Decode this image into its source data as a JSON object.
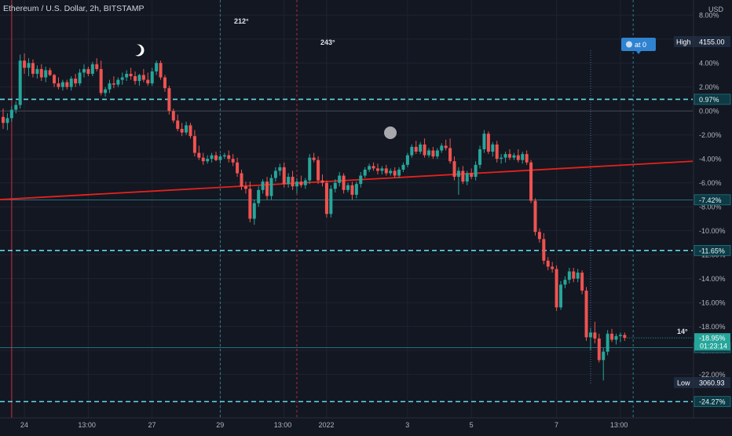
{
  "header": {
    "title": "Ethereum / U.S. Dollar, 2h, BITSTAMP"
  },
  "currency": "USD",
  "scale_mode": "percent",
  "colors": {
    "background": "#131722",
    "up": "#26a69a",
    "down": "#ef5350",
    "trendline": "#e5221b",
    "dashed_line": "#5ed9e6",
    "cycle_line_blue": "#2a7f91",
    "cycle_line_red": "#b02a3c",
    "axis_text": "#b2b5be",
    "label_bg": "#1e4e5c",
    "alert_bg": "#2f83d0"
  },
  "icons": {
    "moon": "moon-icon",
    "circle": "circle-marker-icon"
  },
  "annotations": {
    "cycle_212": "212°",
    "cycle_243": "243°",
    "cycle_14": "14°",
    "alert_label": "at 0",
    "high_label": "High",
    "high_value": "4155.00",
    "low_label": "Low",
    "low_value": "3060.93",
    "last_pct": "-18.95%",
    "countdown": "01:23:14"
  },
  "chart_data": {
    "type": "candlestick",
    "y_unit": "percent",
    "ylim": [
      -25.5,
      9.0
    ],
    "y_ticks": [
      "8.00%",
      "6.00%",
      "4.00%",
      "2.00%",
      "0.00%",
      "-2.00%",
      "-4.00%",
      "-6.00%",
      "-8.00%",
      "-10.00%",
      "-12.00%",
      "-14.00%",
      "-16.00%",
      "-18.00%",
      "-20.00%",
      "-22.00%"
    ],
    "y_tick_values": [
      8,
      6,
      4,
      2,
      0,
      -2,
      -4,
      -6,
      -8,
      -10,
      -12,
      -14,
      -16,
      -18,
      -20,
      -22
    ],
    "x_ticks": [
      "24",
      "13:00",
      "27",
      "29",
      "13:00",
      "2022",
      "3",
      "5",
      "7",
      "13:00"
    ],
    "x_tick_bar_index": [
      5,
      20,
      35,
      51,
      66,
      76,
      95,
      110,
      130,
      145
    ],
    "levels": [
      {
        "label": "0.97%",
        "value": 0.97,
        "style": "dashed"
      },
      {
        "label": "-7.42%",
        "value": -7.42,
        "style": "solid"
      },
      {
        "label": "-11.65%",
        "value": -11.65,
        "style": "dashed"
      },
      {
        "label": "-19.76%",
        "value": -19.76,
        "style": "solid"
      },
      {
        "label": "-24.27%",
        "value": -24.27,
        "style": "dashed"
      }
    ],
    "zero_line": 0.0,
    "trendline": {
      "from": [
        0,
        -7.4
      ],
      "to": [
        150,
        -4.2
      ]
    },
    "cycle_lines": [
      {
        "bar": 2,
        "color": "red"
      },
      {
        "bar": 51,
        "color": "blue"
      },
      {
        "bar": 69,
        "color": "red"
      },
      {
        "bar": 148,
        "color": "blue"
      }
    ],
    "vline_alert_bar": 138,
    "candles": [
      [
        -0.5,
        0.2,
        -1.5,
        -1.0
      ],
      [
        -1.0,
        -0.2,
        -1.6,
        -0.6
      ],
      [
        -0.6,
        0.4,
        -0.9,
        0.1
      ],
      [
        0.1,
        0.8,
        -0.2,
        0.5
      ],
      [
        0.5,
        4.7,
        0.2,
        4.2
      ],
      [
        4.2,
        4.8,
        3.1,
        3.6
      ],
      [
        3.6,
        4.4,
        2.9,
        4.0
      ],
      [
        4.0,
        4.3,
        2.8,
        3.1
      ],
      [
        3.1,
        3.8,
        2.7,
        3.5
      ],
      [
        3.5,
        3.9,
        2.5,
        2.8
      ],
      [
        2.8,
        3.7,
        2.4,
        3.4
      ],
      [
        3.4,
        3.6,
        2.9,
        3.0
      ],
      [
        3.0,
        3.1,
        2.0,
        2.3
      ],
      [
        2.3,
        2.8,
        1.8,
        2.0
      ],
      [
        2.0,
        2.6,
        1.7,
        2.4
      ],
      [
        2.4,
        2.6,
        1.8,
        2.0
      ],
      [
        2.0,
        2.9,
        1.7,
        2.7
      ],
      [
        2.7,
        3.1,
        2.0,
        2.3
      ],
      [
        2.3,
        3.5,
        2.1,
        3.2
      ],
      [
        3.2,
        3.9,
        2.8,
        3.5
      ],
      [
        3.5,
        3.7,
        2.9,
        3.1
      ],
      [
        3.1,
        4.1,
        2.9,
        3.9
      ],
      [
        3.9,
        4.4,
        3.3,
        3.5
      ],
      [
        3.5,
        4.2,
        1.3,
        1.5
      ],
      [
        1.5,
        2.0,
        1.2,
        1.8
      ],
      [
        1.8,
        2.6,
        1.5,
        2.3
      ],
      [
        2.3,
        2.9,
        1.9,
        2.2
      ],
      [
        2.2,
        2.8,
        2.0,
        2.6
      ],
      [
        2.6,
        3.2,
        2.2,
        2.8
      ],
      [
        2.8,
        3.4,
        2.5,
        3.1
      ],
      [
        3.1,
        3.6,
        2.6,
        2.9
      ],
      [
        2.9,
        3.3,
        2.2,
        2.5
      ],
      [
        2.5,
        3.1,
        2.1,
        3.0
      ],
      [
        3.0,
        3.5,
        2.4,
        2.6
      ],
      [
        2.6,
        3.2,
        2.1,
        2.3
      ],
      [
        2.3,
        3.6,
        2.1,
        3.3
      ],
      [
        3.3,
        4.2,
        3.0,
        4.0
      ],
      [
        4.0,
        4.2,
        2.6,
        2.8
      ],
      [
        2.8,
        3.0,
        1.6,
        1.9
      ],
      [
        1.9,
        2.1,
        -0.3,
        0.0
      ],
      [
        0.0,
        0.2,
        -1.0,
        -0.8
      ],
      [
        -0.8,
        -0.3,
        -1.7,
        -1.5
      ],
      [
        -1.5,
        -1.0,
        -2.1,
        -1.8
      ],
      [
        -1.8,
        -0.9,
        -2.0,
        -1.2
      ],
      [
        -1.2,
        -1.0,
        -2.3,
        -2.1
      ],
      [
        -2.1,
        -1.6,
        -3.8,
        -3.5
      ],
      [
        -3.5,
        -2.9,
        -4.1,
        -3.9
      ],
      [
        -3.9,
        -3.5,
        -4.5,
        -4.2
      ],
      [
        -4.2,
        -3.7,
        -4.4,
        -4.0
      ],
      [
        -4.0,
        -3.5,
        -4.3,
        -3.7
      ],
      [
        -3.7,
        -3.4,
        -4.2,
        -4.1
      ],
      [
        -4.1,
        -3.6,
        -4.4,
        -3.8
      ],
      [
        -3.8,
        -3.5,
        -4.0,
        -3.7
      ],
      [
        -3.7,
        -3.3,
        -4.3,
        -4.0
      ],
      [
        -4.0,
        -3.6,
        -4.6,
        -4.3
      ],
      [
        -4.3,
        -3.9,
        -5.5,
        -5.2
      ],
      [
        -5.2,
        -4.9,
        -6.6,
        -6.3
      ],
      [
        -6.3,
        -5.9,
        -6.9,
        -6.5
      ],
      [
        -6.5,
        -5.9,
        -9.3,
        -9.0
      ],
      [
        -9.0,
        -7.4,
        -9.5,
        -7.7
      ],
      [
        -7.7,
        -6.3,
        -8.0,
        -6.6
      ],
      [
        -6.6,
        -5.7,
        -6.9,
        -5.9
      ],
      [
        -5.9,
        -5.5,
        -7.4,
        -7.1
      ],
      [
        -7.1,
        -5.3,
        -7.4,
        -5.6
      ],
      [
        -5.6,
        -4.7,
        -5.9,
        -5.0
      ],
      [
        -5.0,
        -4.4,
        -5.4,
        -4.7
      ],
      [
        -4.7,
        -4.3,
        -6.4,
        -6.1
      ],
      [
        -6.1,
        -5.2,
        -6.4,
        -5.5
      ],
      [
        -5.5,
        -5.0,
        -6.6,
        -6.3
      ],
      [
        -6.3,
        -5.6,
        -6.9,
        -5.9
      ],
      [
        -5.9,
        -5.4,
        -6.4,
        -6.2
      ],
      [
        -6.2,
        -5.6,
        -6.5,
        -5.8
      ],
      [
        -5.8,
        -3.6,
        -6.1,
        -3.9
      ],
      [
        -3.9,
        -3.5,
        -4.3,
        -4.1
      ],
      [
        -4.1,
        -3.8,
        -6.1,
        -5.8
      ],
      [
        -5.8,
        -5.3,
        -6.3,
        -6.0
      ],
      [
        -6.0,
        -5.8,
        -8.9,
        -8.6
      ],
      [
        -8.6,
        -6.2,
        -8.9,
        -6.5
      ],
      [
        -6.5,
        -5.7,
        -6.8,
        -6.0
      ],
      [
        -6.0,
        -5.1,
        -6.3,
        -5.4
      ],
      [
        -5.4,
        -5.2,
        -6.9,
        -6.6
      ],
      [
        -6.6,
        -6.0,
        -6.8,
        -6.2
      ],
      [
        -6.2,
        -5.9,
        -7.4,
        -7.0
      ],
      [
        -7.0,
        -5.9,
        -7.3,
        -6.1
      ],
      [
        -6.1,
        -5.1,
        -6.4,
        -5.4
      ],
      [
        -5.4,
        -4.7,
        -5.6,
        -4.9
      ],
      [
        -4.9,
        -4.4,
        -5.1,
        -4.6
      ],
      [
        -4.6,
        -4.3,
        -5.0,
        -4.8
      ],
      [
        -4.8,
        -4.4,
        -5.3,
        -5.0
      ],
      [
        -5.0,
        -4.6,
        -5.3,
        -4.8
      ],
      [
        -4.8,
        -4.5,
        -5.4,
        -5.2
      ],
      [
        -5.2,
        -4.8,
        -5.4,
        -5.0
      ],
      [
        -5.0,
        -4.7,
        -5.6,
        -5.4
      ],
      [
        -5.4,
        -4.7,
        -5.6,
        -4.9
      ],
      [
        -4.9,
        -4.3,
        -5.1,
        -4.5
      ],
      [
        -4.5,
        -3.5,
        -4.7,
        -3.7
      ],
      [
        -3.7,
        -2.8,
        -3.9,
        -3.0
      ],
      [
        -3.0,
        -2.5,
        -3.6,
        -3.4
      ],
      [
        -3.4,
        -2.6,
        -3.6,
        -2.8
      ],
      [
        -2.8,
        -2.3,
        -3.9,
        -3.7
      ],
      [
        -3.7,
        -3.1,
        -3.9,
        -3.3
      ],
      [
        -3.3,
        -3.0,
        -4.0,
        -3.8
      ],
      [
        -3.8,
        -3.1,
        -4.0,
        -3.3
      ],
      [
        -3.3,
        -2.7,
        -3.5,
        -2.9
      ],
      [
        -2.9,
        -2.4,
        -3.3,
        -3.1
      ],
      [
        -3.1,
        -2.3,
        -4.4,
        -4.2
      ],
      [
        -4.2,
        -3.8,
        -5.8,
        -5.5
      ],
      [
        -5.5,
        -4.7,
        -7.0,
        -5.0
      ],
      [
        -5.0,
        -4.6,
        -6.1,
        -5.9
      ],
      [
        -5.9,
        -5.0,
        -6.2,
        -5.2
      ],
      [
        -5.2,
        -4.8,
        -5.7,
        -5.5
      ],
      [
        -5.5,
        -4.2,
        -5.8,
        -4.5
      ],
      [
        -4.5,
        -2.9,
        -4.8,
        -3.2
      ],
      [
        -3.2,
        -1.6,
        -3.5,
        -1.9
      ],
      [
        -1.9,
        -1.7,
        -3.6,
        -3.4
      ],
      [
        -3.4,
        -2.6,
        -3.8,
        -2.8
      ],
      [
        -2.8,
        -2.5,
        -4.3,
        -4.0
      ],
      [
        -4.0,
        -3.6,
        -4.4,
        -3.9
      ],
      [
        -3.9,
        -3.4,
        -4.3,
        -3.6
      ],
      [
        -3.6,
        -3.2,
        -4.1,
        -3.9
      ],
      [
        -3.9,
        -3.5,
        -4.1,
        -3.7
      ],
      [
        -3.7,
        -3.2,
        -4.3,
        -4.1
      ],
      [
        -4.1,
        -3.4,
        -4.4,
        -3.6
      ],
      [
        -3.6,
        -3.3,
        -4.5,
        -4.3
      ],
      [
        -4.3,
        -4.1,
        -7.7,
        -7.5
      ],
      [
        -7.5,
        -7.3,
        -10.4,
        -10.1
      ],
      [
        -10.1,
        -9.8,
        -11.0,
        -10.7
      ],
      [
        -10.7,
        -10.2,
        -12.8,
        -12.5
      ],
      [
        -12.5,
        -12.2,
        -13.3,
        -13.0
      ],
      [
        -13.0,
        -12.6,
        -13.5,
        -13.2
      ],
      [
        -13.2,
        -12.9,
        -16.7,
        -16.4
      ],
      [
        -16.4,
        -14.2,
        -16.6,
        -14.5
      ],
      [
        -14.5,
        -13.8,
        -14.8,
        -14.1
      ],
      [
        -14.1,
        -13.1,
        -14.4,
        -13.4
      ],
      [
        -13.4,
        -13.1,
        -14.3,
        -14.0
      ],
      [
        -14.0,
        -13.2,
        -14.3,
        -13.5
      ],
      [
        -13.5,
        -13.3,
        -15.3,
        -15.0
      ],
      [
        -15.0,
        -14.7,
        -19.2,
        -18.9
      ],
      [
        -18.9,
        -18.1,
        -20.0,
        -18.5
      ],
      [
        -18.5,
        -17.6,
        -19.4,
        -19.0
      ],
      [
        -19.0,
        -18.6,
        -21.0,
        -20.8
      ],
      [
        -20.8,
        -19.8,
        -22.5,
        -20.1
      ],
      [
        -20.1,
        -18.3,
        -20.4,
        -18.6
      ],
      [
        -18.6,
        -18.2,
        -19.3,
        -19.1
      ],
      [
        -19.1,
        -18.6,
        -19.5,
        -18.8
      ],
      [
        -18.8,
        -18.5,
        -19.3,
        -18.7
      ],
      [
        -18.7,
        -18.5,
        -19.2,
        -18.95
      ]
    ]
  }
}
